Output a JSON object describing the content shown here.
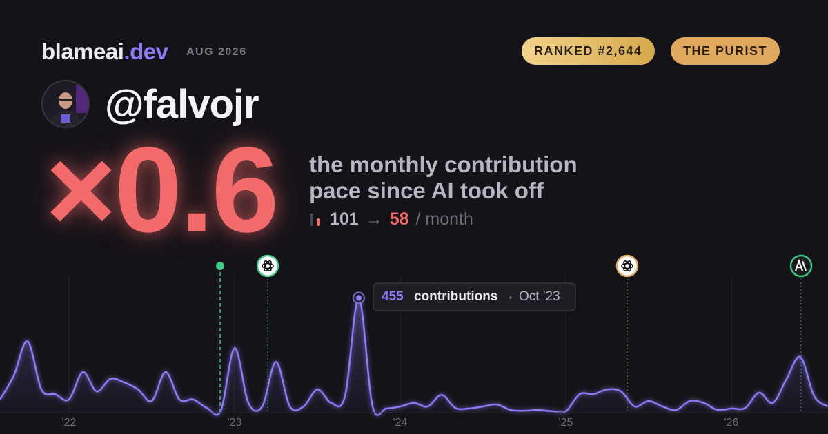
{
  "header": {
    "brand": "blameai",
    "brand_suffix": ".dev",
    "date": "AUG 2026",
    "rank": "RANKED #2,644",
    "badge": "THE PURIST"
  },
  "user": {
    "handle": "@falvojr"
  },
  "stat": {
    "multiplier": "×0.6",
    "caption_lines": [
      "the monthly contribution",
      "pace since AI took off"
    ],
    "before": 101,
    "arrow": "→",
    "after": 58,
    "unit": "/ month"
  },
  "chart_data": {
    "type": "line",
    "categories": [
      null,
      null,
      null,
      null,
      null,
      "'22",
      null,
      null,
      null,
      null,
      null,
      null,
      null,
      null,
      null,
      null,
      null,
      "'23",
      null,
      null,
      null,
      null,
      null,
      null,
      null,
      null,
      null,
      null,
      null,
      "'24",
      null,
      null,
      null,
      null,
      null,
      null,
      null,
      null,
      null,
      null,
      null,
      "'25",
      null,
      null,
      null,
      null,
      null,
      null,
      null,
      null,
      null,
      null,
      null,
      "'26",
      null,
      null,
      null,
      null,
      null,
      null,
      null
    ],
    "values": [
      50,
      145,
      282,
      90,
      71,
      50,
      159,
      82,
      132,
      118,
      90,
      44,
      159,
      50,
      50,
      16,
      5,
      255,
      36,
      22,
      200,
      22,
      22,
      90,
      36,
      63,
      455,
      22,
      14,
      22,
      36,
      22,
      68,
      16,
      14,
      22,
      30,
      8,
      5,
      8,
      3,
      3,
      71,
      71,
      90,
      82,
      22,
      44,
      22,
      8,
      44,
      36,
      8,
      14,
      16,
      77,
      36,
      132,
      219,
      63,
      22
    ],
    "color": "#8b7cf6",
    "ylim": [
      0,
      500
    ],
    "tooltip": {
      "label": "contributions",
      "date": "Oct '23"
    }
  }
}
